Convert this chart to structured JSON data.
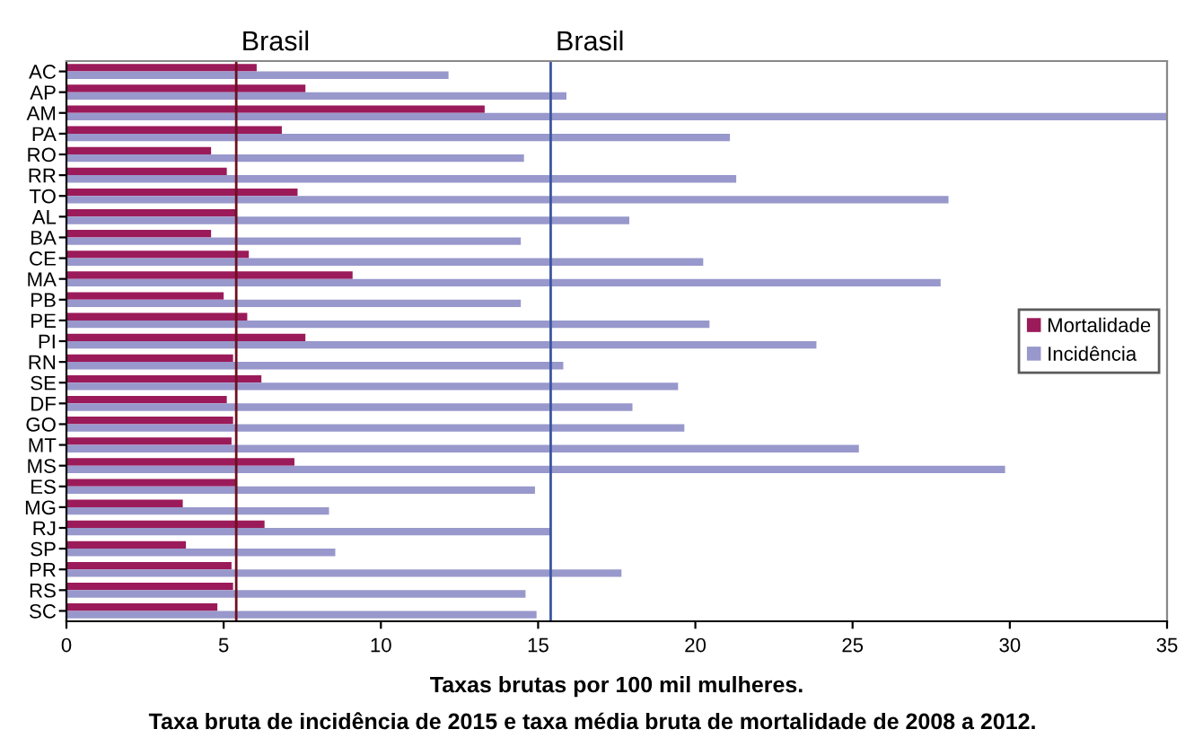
{
  "chart_data": {
    "type": "bar",
    "orientation": "horizontal",
    "xlabel": "Taxas brutas por 100 mil mulheres.",
    "annotations": [
      "Taxa bruta de incidência de 2015 e taxa média bruta de mortalidade de 2008 a 2012."
    ],
    "categories": [
      "AC",
      "AP",
      "AM",
      "PA",
      "RO",
      "RR",
      "TO",
      "AL",
      "BA",
      "CE",
      "MA",
      "PB",
      "PE",
      "PI",
      "RN",
      "SE",
      "DF",
      "GO",
      "MT",
      "MS",
      "ES",
      "MG",
      "RJ",
      "SP",
      "PR",
      "RS",
      "SC"
    ],
    "series": [
      {
        "name": "Mortalidade",
        "color": "#9b1b5a",
        "values": [
          6.05,
          7.6,
          13.3,
          6.85,
          4.6,
          5.1,
          7.35,
          5.4,
          4.6,
          5.8,
          9.1,
          5.0,
          5.75,
          7.6,
          5.3,
          6.2,
          5.1,
          5.3,
          5.25,
          7.25,
          5.4,
          3.7,
          6.3,
          3.8,
          5.25,
          5.3,
          4.8
        ]
      },
      {
        "name": "Incidência",
        "color": "#9898cc",
        "values": [
          12.15,
          15.9,
          35,
          21.1,
          14.55,
          21.3,
          28.05,
          17.9,
          14.45,
          20.25,
          27.8,
          14.45,
          20.45,
          23.85,
          15.8,
          19.45,
          18.0,
          19.65,
          25.2,
          29.85,
          14.9,
          8.35,
          15.4,
          8.55,
          17.65,
          14.6,
          14.95
        ]
      }
    ],
    "xlim": [
      0,
      35
    ],
    "xticks": [
      0,
      5,
      10,
      15,
      20,
      25,
      30,
      35
    ],
    "ref_lines": [
      {
        "axis": "x",
        "value": 5.4,
        "label": "Brasil",
        "color": "#6b1020"
      },
      {
        "axis": "x",
        "value": 15.4,
        "label": "Brasil",
        "color": "#3a55a0"
      }
    ],
    "legend": "right",
    "grid": false
  }
}
